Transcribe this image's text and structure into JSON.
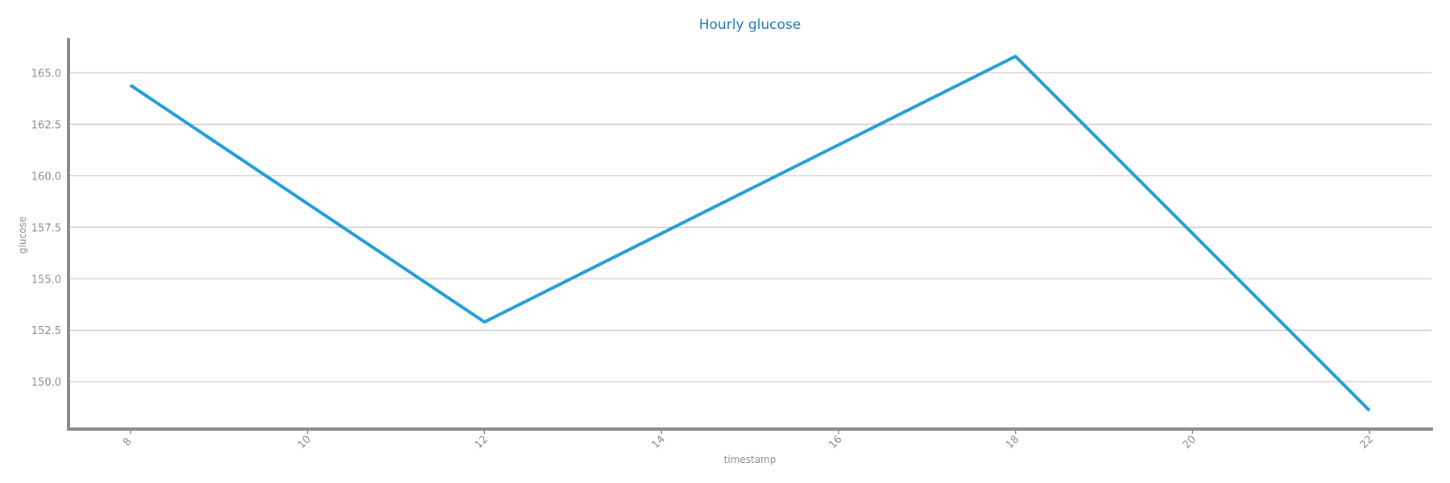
{
  "chart_data": {
    "type": "line",
    "title": "Hourly glucose",
    "xlabel": "timestamp",
    "ylabel": "glucose",
    "x_ticks": [
      8,
      10,
      12,
      14,
      16,
      18,
      20,
      22
    ],
    "y_ticks": [
      "150.0",
      "152.5",
      "155.0",
      "157.5",
      "160.0",
      "162.5",
      "165.0"
    ],
    "xlim": [
      7.3,
      22.7
    ],
    "ylim": [
      147.7,
      166.7
    ],
    "grid": "horizontal",
    "series": [
      {
        "x": [
          8,
          12,
          18,
          22
        ],
        "y": [
          164.4,
          152.9,
          165.8,
          148.6
        ],
        "color": "#219ed4"
      }
    ]
  }
}
